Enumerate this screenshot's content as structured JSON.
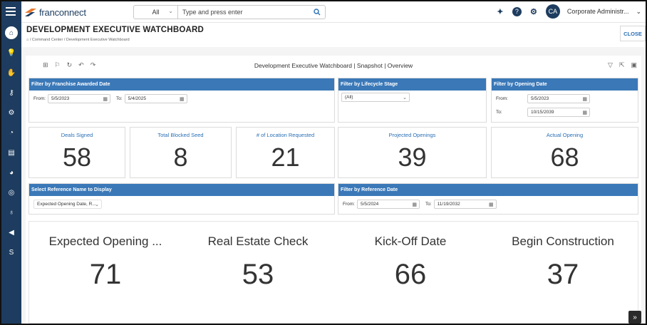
{
  "app": {
    "logo_text": "franconnect"
  },
  "search": {
    "scope": "All",
    "placeholder": "Type and press enter"
  },
  "user": {
    "initials": "CA",
    "name": "Corporate Administr..."
  },
  "page": {
    "title": "DEVELOPMENT EXECUTIVE WATCHBOARD",
    "breadcrumb": "/ Command Center / Development Executive Watchboard",
    "close_label": "CLOSE"
  },
  "board": {
    "title": "Development Executive Watchboard | Snapshot | Overview"
  },
  "filters": {
    "franchise_awarded": {
      "title": "Filter by Franchise Awarded Date",
      "from_label": "From:",
      "from": "5/5/2023",
      "to_label": "To:",
      "to": "5/4/2025"
    },
    "lifecycle": {
      "title": "Filter by Lifecycle Stage",
      "value": "(All)"
    },
    "opening": {
      "title": "Filter by Opening Date",
      "from_label": "From:",
      "from": "5/5/2023",
      "to_label": "To:",
      "to": "10/15/2039"
    },
    "reference_name": {
      "title": "Select Reference Name to Display",
      "value": "Expected Opening Date, R..."
    },
    "reference_date": {
      "title": "Filter by Reference Date",
      "from_label": "From:",
      "from": "5/5/2024",
      "to_label": "To:",
      "to": "11/19/2032"
    }
  },
  "kpis": [
    {
      "label": "Deals Signed",
      "value": "58"
    },
    {
      "label": "Total Blocked Seed",
      "value": "8"
    },
    {
      "label": "# of Location Requested",
      "value": "21"
    },
    {
      "label": "Projected Openings",
      "value": "39"
    },
    {
      "label": "Actual Opening",
      "value": "68"
    }
  ],
  "references": [
    {
      "label": "Expected Opening ...",
      "value": "71"
    },
    {
      "label": "Real Estate Check",
      "value": "53"
    },
    {
      "label": "Kick-Off Date",
      "value": "66"
    },
    {
      "label": "Begin Construction",
      "value": "37"
    }
  ],
  "sidebar": {
    "bottom_label": "S"
  },
  "colors": {
    "sidebar": "#1d3c5f",
    "panel_header": "#3a78b8",
    "accent": "#2a6fb5"
  }
}
